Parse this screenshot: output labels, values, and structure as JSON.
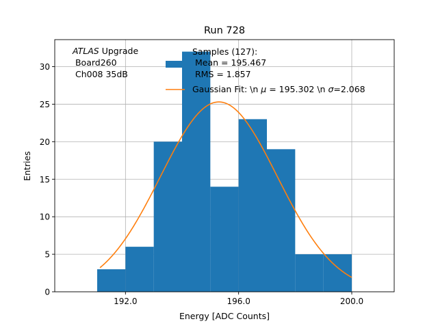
{
  "chart_data": {
    "type": "bar",
    "title": "Run 728",
    "xlabel": "Energy [ADC Counts]",
    "ylabel": "Entries",
    "xlim": [
      189.5,
      201.5
    ],
    "ylim": [
      0,
      33.6
    ],
    "xticks": [
      192,
      196,
      200
    ],
    "xtick_labels": [
      "192.0",
      "196.0",
      "200.0"
    ],
    "yticks": [
      0,
      5,
      10,
      15,
      20,
      25,
      30
    ],
    "ytick_labels": [
      "0",
      "5",
      "10",
      "15",
      "20",
      "25",
      "30"
    ],
    "grid": true,
    "histogram": {
      "name": "Samples (127):",
      "color": "#1f77b4",
      "bin_edges": [
        191,
        192,
        193,
        194,
        195,
        196,
        197,
        198,
        199,
        200
      ],
      "counts": [
        3,
        6,
        20,
        32,
        14,
        23,
        19,
        5,
        5
      ]
    },
    "fit": {
      "name": "Gaussian Fit",
      "color": "#ff7f0e",
      "mu": 195.302,
      "sigma": 2.068,
      "amplitude": 25.3,
      "x_range": [
        191.1,
        200.0
      ]
    },
    "annotation": {
      "italic": "ATLAS",
      "upgrade": " Upgrade",
      "line2": " Board260",
      "line3": " Ch008 35dB"
    },
    "legend": {
      "position": "top-right",
      "hist_line1": "Samples (127):",
      "hist_line2": " Mean = 195.467",
      "hist_line3": " RMS = 1.857",
      "fit_prefix": "Gaussian Fit: \\n ",
      "fit_mu_sym": "μ",
      "fit_mid": " = 195.302 \\n ",
      "fit_sigma_sym": "σ",
      "fit_end": "=2.068"
    }
  }
}
